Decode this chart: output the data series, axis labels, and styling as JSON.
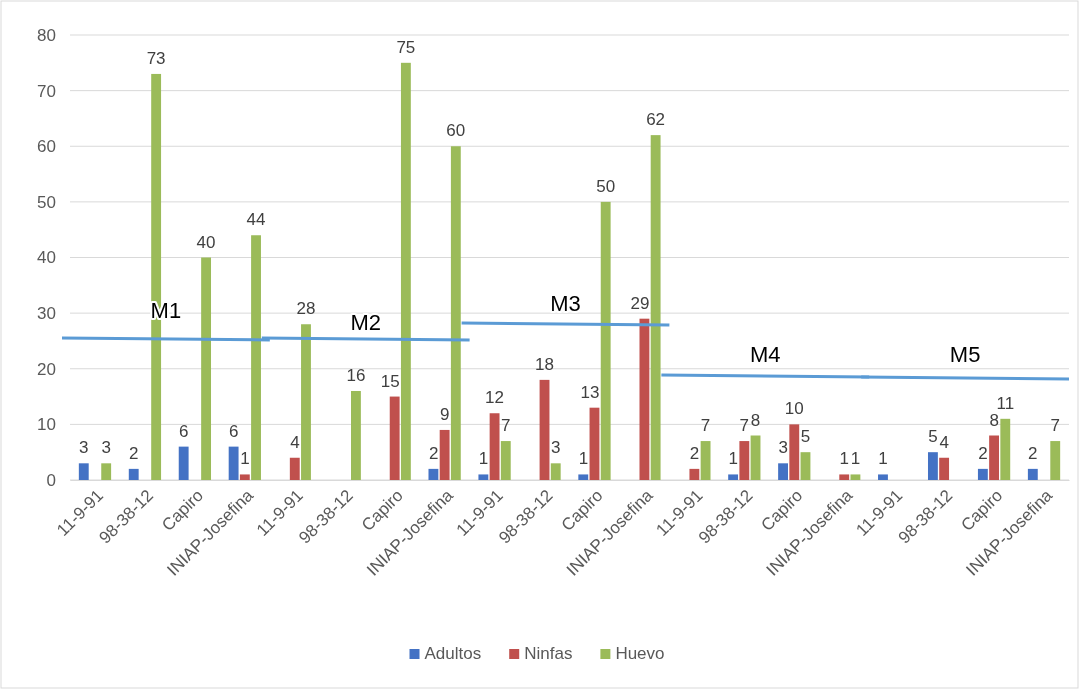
{
  "chart_data": {
    "type": "bar",
    "categories": [
      "11-9-91",
      "98-38-12",
      "Capiro",
      "INIAP-Josefina",
      "11-9-91",
      "98-38-12",
      "Capiro",
      "INIAP-Josefina",
      "11-9-91",
      "98-38-12",
      "Capiro",
      "INIAP-Josefina",
      "11-9-91",
      "98-38-12",
      "Capiro",
      "INIAP-Josefina",
      "11-9-91",
      "98-38-12",
      "Capiro",
      "INIAP-Josefina"
    ],
    "series": [
      {
        "name": "Adultos",
        "color": "#4472c4",
        "values": [
          3,
          2,
          6,
          6,
          0,
          0,
          0,
          2,
          1,
          0,
          1,
          0,
          0,
          1,
          3,
          0,
          1,
          5,
          2,
          2
        ],
        "value_labels": [
          "3",
          "2",
          "6",
          "6",
          null,
          null,
          null,
          "2",
          "1",
          null,
          "1",
          null,
          null,
          "1",
          "3",
          null,
          "1",
          "5",
          "2",
          "2"
        ]
      },
      {
        "name": "Ninfas",
        "color": "#c0504d",
        "values": [
          0,
          0,
          0,
          1,
          4,
          0,
          15,
          9,
          12,
          18,
          13,
          29,
          2,
          7,
          10,
          1,
          0,
          4,
          8,
          0
        ],
        "value_labels": [
          null,
          null,
          null,
          "1",
          "4",
          null,
          "15",
          "9",
          "12",
          "18",
          "13",
          "29",
          "2",
          "7",
          "10",
          "1",
          null,
          "4",
          "8",
          null
        ]
      },
      {
        "name": "Huevo",
        "color": "#9bbb59",
        "values": [
          3,
          73,
          40,
          44,
          28,
          16,
          75,
          60,
          7,
          3,
          50,
          62,
          7,
          8,
          5,
          1,
          0,
          0,
          11,
          7
        ],
        "value_labels": [
          "3",
          "73",
          "40",
          "44",
          "28",
          "16",
          "75",
          "60",
          "7",
          "3",
          "50",
          "62",
          "7",
          "8",
          "5",
          "1",
          null,
          null,
          "11",
          "7"
        ]
      }
    ],
    "ylim": [
      0,
      80
    ],
    "yticks": [
      0,
      10,
      20,
      30,
      40,
      50,
      60,
      70,
      80
    ],
    "grid": "y",
    "legend": "bottom",
    "annotations": [
      "M1",
      "M2",
      "M3",
      "M4",
      "M5"
    ]
  }
}
